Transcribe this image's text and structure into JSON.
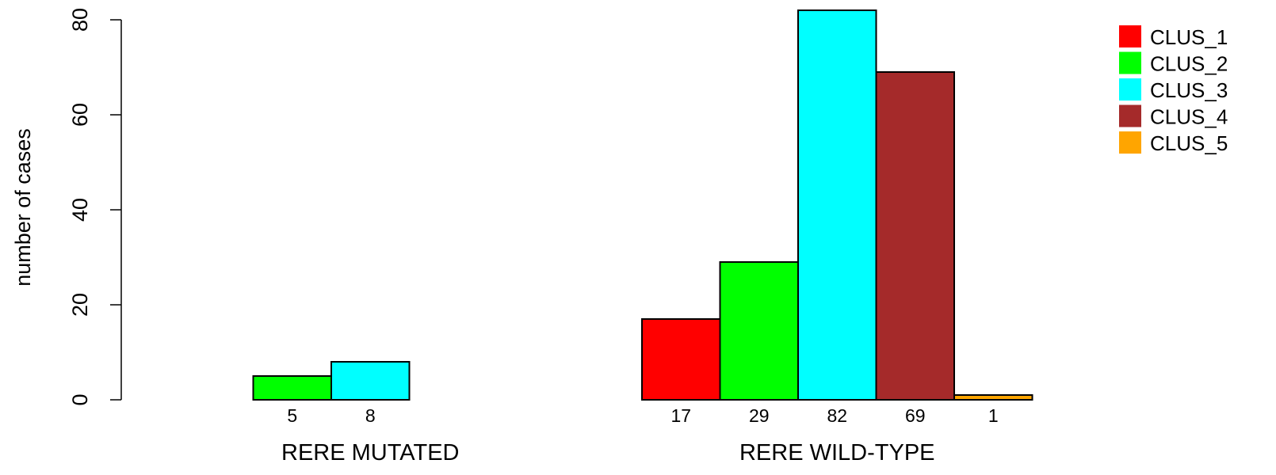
{
  "chart_data": {
    "type": "bar",
    "ylabel": "number of cases",
    "ylim": [
      0,
      82
    ],
    "yticks": [
      0,
      20,
      40,
      60,
      80
    ],
    "groups": [
      {
        "label": "RERE MUTATED",
        "values": [
          0,
          5,
          8,
          0,
          0
        ],
        "value_labels": [
          "",
          "5",
          "8",
          "",
          ""
        ]
      },
      {
        "label": "RERE WILD-TYPE",
        "values": [
          17,
          29,
          82,
          69,
          1
        ],
        "value_labels": [
          "17",
          "29",
          "82",
          "69",
          "1"
        ]
      }
    ],
    "series": [
      {
        "name": "CLUS_1",
        "color": "#ff0000"
      },
      {
        "name": "CLUS_2",
        "color": "#00ff00"
      },
      {
        "name": "CLUS_3",
        "color": "#00ffff"
      },
      {
        "name": "CLUS_4",
        "color": "#a52a2a"
      },
      {
        "name": "CLUS_5",
        "color": "#ffa500"
      }
    ],
    "legend_position": "top-right",
    "grid": false
  }
}
